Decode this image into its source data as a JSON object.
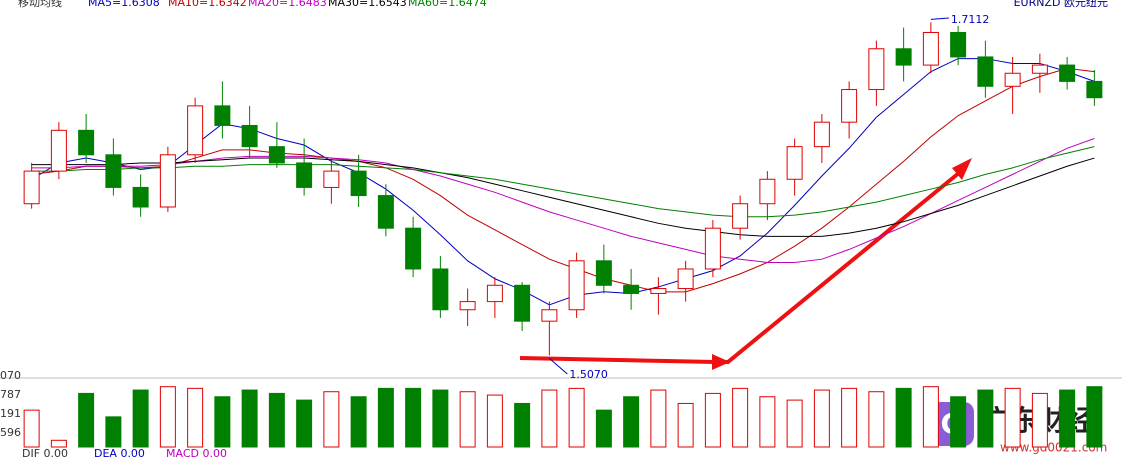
{
  "chart_data": [
    {
      "type": "candlestick",
      "title": "移动均线",
      "symbol": "EURNZD 欧元纽元",
      "ylim": [
        1.495,
        1.72
      ],
      "candles": [
        [
          1.6,
          1.625,
          1.597,
          1.62
        ],
        [
          1.62,
          1.65,
          1.615,
          1.645
        ],
        [
          1.645,
          1.655,
          1.625,
          1.63
        ],
        [
          1.63,
          1.64,
          1.605,
          1.61
        ],
        [
          1.61,
          1.618,
          1.592,
          1.598
        ],
        [
          1.598,
          1.635,
          1.595,
          1.63
        ],
        [
          1.63,
          1.665,
          1.625,
          1.66
        ],
        [
          1.66,
          1.675,
          1.64,
          1.648
        ],
        [
          1.648,
          1.66,
          1.628,
          1.635
        ],
        [
          1.635,
          1.65,
          1.622,
          1.625
        ],
        [
          1.625,
          1.64,
          1.605,
          1.61
        ],
        [
          1.61,
          1.628,
          1.6,
          1.62
        ],
        [
          1.62,
          1.63,
          1.598,
          1.605
        ],
        [
          1.605,
          1.612,
          1.58,
          1.585
        ],
        [
          1.585,
          1.592,
          1.555,
          1.56
        ],
        [
          1.56,
          1.568,
          1.53,
          1.535
        ],
        [
          1.535,
          1.548,
          1.525,
          1.54
        ],
        [
          1.54,
          1.555,
          1.53,
          1.55
        ],
        [
          1.55,
          1.552,
          1.522,
          1.528
        ],
        [
          1.528,
          1.54,
          1.507,
          1.535
        ],
        [
          1.535,
          1.57,
          1.53,
          1.565
        ],
        [
          1.565,
          1.575,
          1.545,
          1.55
        ],
        [
          1.55,
          1.56,
          1.535,
          1.545
        ],
        [
          1.545,
          1.555,
          1.532,
          1.548
        ],
        [
          1.548,
          1.565,
          1.54,
          1.56
        ],
        [
          1.56,
          1.59,
          1.555,
          1.585
        ],
        [
          1.585,
          1.605,
          1.578,
          1.6
        ],
        [
          1.6,
          1.62,
          1.59,
          1.615
        ],
        [
          1.615,
          1.64,
          1.605,
          1.635
        ],
        [
          1.635,
          1.655,
          1.625,
          1.65
        ],
        [
          1.65,
          1.675,
          1.64,
          1.67
        ],
        [
          1.67,
          1.7,
          1.66,
          1.695
        ],
        [
          1.695,
          1.708,
          1.675,
          1.685
        ],
        [
          1.685,
          1.7112,
          1.68,
          1.705
        ],
        [
          1.705,
          1.709,
          1.685,
          1.69
        ],
        [
          1.69,
          1.7,
          1.665,
          1.672
        ],
        [
          1.672,
          1.69,
          1.655,
          1.68
        ],
        [
          1.68,
          1.692,
          1.668,
          1.685
        ],
        [
          1.685,
          1.69,
          1.67,
          1.675
        ],
        [
          1.675,
          1.682,
          1.66,
          1.665
        ]
      ],
      "up_color": "#e00000",
      "down_color": "#008000",
      "series": [
        {
          "name": "MA5=1.6308",
          "color": "#0000c0",
          "values": [
            1.615,
            1.625,
            1.628,
            1.625,
            1.621,
            1.623,
            1.636,
            1.649,
            1.646,
            1.64,
            1.636,
            1.626,
            1.619,
            1.609,
            1.596,
            1.581,
            1.565,
            1.554,
            1.547,
            1.538,
            1.544,
            1.546,
            1.545,
            1.549,
            1.554,
            1.559,
            1.568,
            1.582,
            1.599,
            1.617,
            1.634,
            1.653,
            1.667,
            1.681,
            1.689,
            1.689,
            1.686,
            1.686,
            1.681,
            1.675
          ]
        },
        {
          "name": "MA10=1.6342",
          "color": "#c00000",
          "values": [
            1.618,
            1.62,
            1.623,
            1.623,
            1.622,
            1.623,
            1.628,
            1.633,
            1.633,
            1.631,
            1.63,
            1.628,
            1.626,
            1.622,
            1.615,
            1.605,
            1.593,
            1.584,
            1.575,
            1.566,
            1.56,
            1.554,
            1.55,
            1.546,
            1.546,
            1.551,
            1.557,
            1.564,
            1.574,
            1.585,
            1.598,
            1.612,
            1.626,
            1.641,
            1.654,
            1.663,
            1.672,
            1.678,
            1.683,
            1.681
          ]
        },
        {
          "name": "MA20=1.6483",
          "color": "#c000c0",
          "values": [
            1.622,
            1.622,
            1.623,
            1.623,
            1.623,
            1.624,
            1.626,
            1.628,
            1.629,
            1.629,
            1.629,
            1.628,
            1.627,
            1.625,
            1.621,
            1.617,
            1.612,
            1.607,
            1.601,
            1.595,
            1.59,
            1.585,
            1.58,
            1.576,
            1.572,
            1.568,
            1.566,
            1.564,
            1.564,
            1.566,
            1.572,
            1.579,
            1.586,
            1.594,
            1.602,
            1.61,
            1.618,
            1.626,
            1.634,
            1.64
          ]
        },
        {
          "name": "MA30=1.6543",
          "color": "#000000",
          "values": [
            1.624,
            1.624,
            1.624,
            1.624,
            1.625,
            1.625,
            1.626,
            1.627,
            1.628,
            1.628,
            1.628,
            1.627,
            1.626,
            1.624,
            1.622,
            1.619,
            1.616,
            1.612,
            1.608,
            1.604,
            1.6,
            1.596,
            1.592,
            1.588,
            1.585,
            1.583,
            1.581,
            1.58,
            1.58,
            1.58,
            1.582,
            1.585,
            1.589,
            1.594,
            1.599,
            1.605,
            1.611,
            1.617,
            1.623,
            1.628
          ]
        },
        {
          "name": "MA60=1.6474",
          "color": "#008000",
          "values": [
            1.62,
            1.62,
            1.621,
            1.621,
            1.622,
            1.622,
            1.623,
            1.623,
            1.624,
            1.624,
            1.624,
            1.624,
            1.623,
            1.622,
            1.621,
            1.619,
            1.617,
            1.615,
            1.612,
            1.609,
            1.606,
            1.603,
            1.6,
            1.597,
            1.595,
            1.593,
            1.592,
            1.592,
            1.593,
            1.595,
            1.598,
            1.601,
            1.605,
            1.609,
            1.613,
            1.618,
            1.622,
            1.627,
            1.631,
            1.635
          ]
        }
      ],
      "annotations": [
        {
          "label": "1.7112",
          "value": 1.7112
        },
        {
          "label": "1.5070",
          "value": 1.507
        }
      ]
    },
    {
      "type": "bar",
      "ylim": [
        0,
        4
      ],
      "axis_labels": [
        "070",
        "787",
        "191",
        "596"
      ],
      "indicator_labels": [
        "DIF 0.00",
        "DEA 0.00",
        "MACD 0.00"
      ],
      "values": [
        2.2,
        0.4,
        3.2,
        1.8,
        3.4,
        3.6,
        3.5,
        3.0,
        3.4,
        3.2,
        2.8,
        3.3,
        3.0,
        3.5,
        3.5,
        3.4,
        3.3,
        3.1,
        2.6,
        3.4,
        3.5,
        2.2,
        3.0,
        3.4,
        2.6,
        3.2,
        3.5,
        3.0,
        2.8,
        3.4,
        3.5,
        3.3,
        3.5,
        3.6,
        3.0,
        3.4,
        3.5,
        3.2,
        3.4,
        3.6
      ]
    }
  ],
  "watermark": {
    "title": "广东财经",
    "url": "www.gd0021.com"
  }
}
